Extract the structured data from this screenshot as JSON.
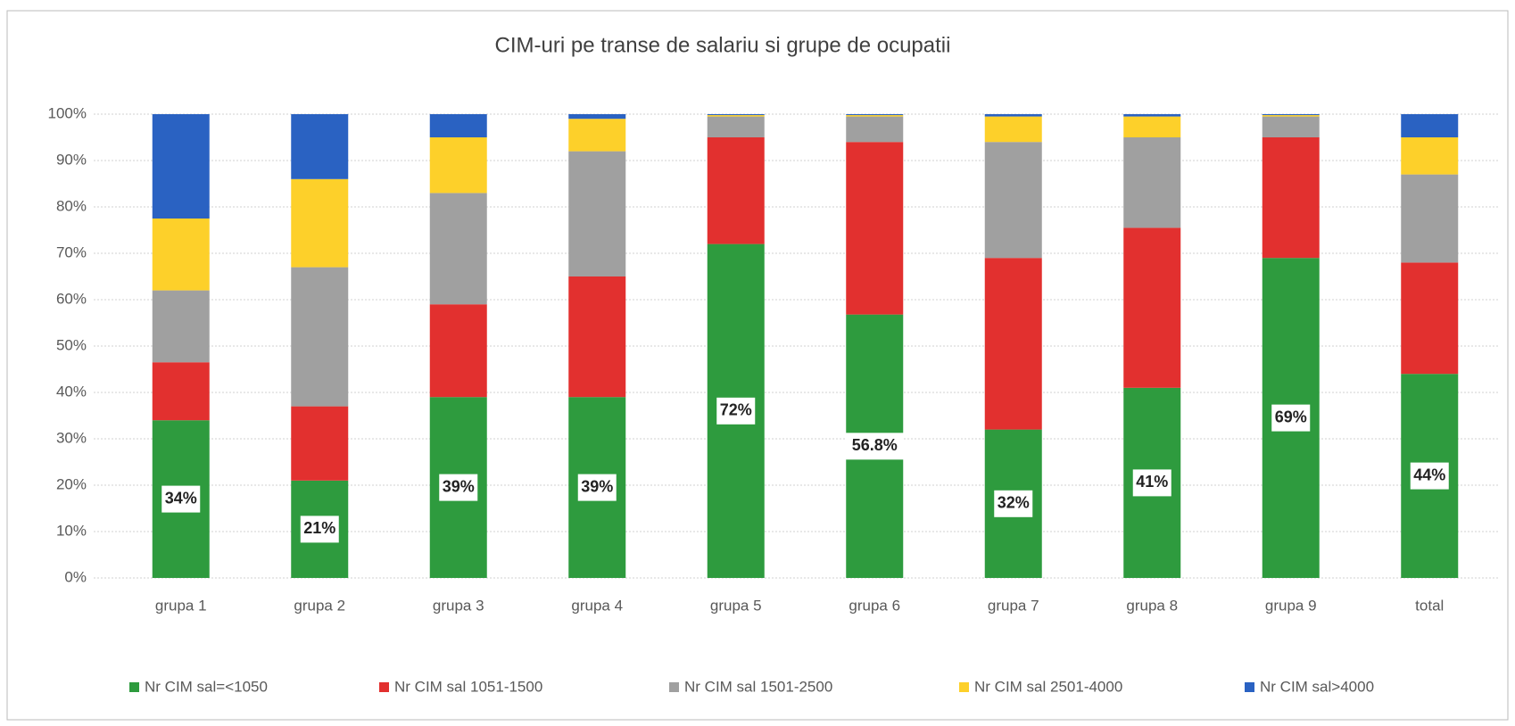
{
  "chart_data": {
    "type": "stacked_bar",
    "title": "CIM-uri pe transe de salariu si grupe de ocupatii",
    "categories": [
      "grupa 1",
      "grupa 2",
      "grupa 3",
      "grupa 4",
      "grupa 5",
      "grupa 6",
      "grupa 7",
      "grupa 8",
      "grupa 9",
      "total"
    ],
    "series": [
      {
        "name": "Nr CIM sal=<1050",
        "color": "#2e9b3e",
        "values": [
          34,
          21,
          39,
          39,
          72,
          56.8,
          32,
          41,
          69,
          44
        ],
        "value_labels": [
          "34%",
          "21%",
          "39%",
          "39%",
          "72%",
          "56.8%",
          "32%",
          "41%",
          "69%",
          "44%"
        ]
      },
      {
        "name": "Nr CIM  sal 1051-1500",
        "color": "#e2302f",
        "values": [
          12.5,
          16,
          20,
          26,
          23,
          37.2,
          37,
          34.5,
          26,
          24
        ]
      },
      {
        "name": "Nr CIM  sal 1501-2500",
        "color": "#a0a0a0",
        "values": [
          15.5,
          30,
          24,
          27,
          4.5,
          5.5,
          25,
          19.5,
          4.5,
          19
        ]
      },
      {
        "name": "Nr CIM  sal 2501-4000",
        "color": "#fdd02a",
        "values": [
          15.5,
          19,
          12,
          7,
          0.3,
          0.3,
          5.5,
          4.5,
          0.3,
          8
        ]
      },
      {
        "name": "Nr CIM  sal>4000",
        "color": "#2a62c2",
        "values": [
          22.5,
          14,
          5,
          1,
          0.2,
          0.2,
          0.5,
          0.5,
          0.2,
          5
        ]
      }
    ],
    "ylim": [
      0,
      100
    ],
    "yticks": [
      {
        "value": 0,
        "label": "0%"
      },
      {
        "value": 10,
        "label": "10%"
      },
      {
        "value": 20,
        "label": "20%"
      },
      {
        "value": 30,
        "label": "30%"
      },
      {
        "value": 40,
        "label": "40%"
      },
      {
        "value": 50,
        "label": "50%"
      },
      {
        "value": 60,
        "label": "60%"
      },
      {
        "value": 70,
        "label": "70%"
      },
      {
        "value": 80,
        "label": "80%"
      },
      {
        "value": 90,
        "label": "90%"
      },
      {
        "value": 100,
        "label": "100%"
      }
    ],
    "grid": true,
    "legend": "bottom"
  }
}
